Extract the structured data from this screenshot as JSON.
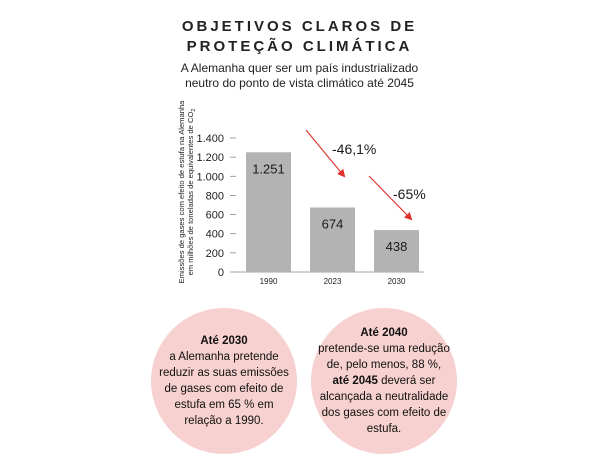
{
  "header": {
    "title_line1": "OBJETIVOS CLAROS DE",
    "title_line2": "PROTEÇÃO CLIMÁTICA",
    "subtitle_line1": "A Alemanha quer ser um país industrializado",
    "subtitle_line2": "neutro do ponto de vista climático até 2045"
  },
  "chart_data": {
    "type": "bar",
    "categories": [
      "1990",
      "2023",
      "2030"
    ],
    "values": [
      1251,
      674,
      438
    ],
    "value_labels": [
      "1.251",
      "674",
      "438"
    ],
    "ylim": [
      0,
      1400
    ],
    "yticks": [
      0,
      200,
      400,
      600,
      800,
      1000,
      1200,
      1400
    ],
    "ytick_labels": [
      "0",
      "200",
      "400",
      "600",
      "800",
      "1.000",
      "1.200",
      "1.400"
    ],
    "ylabel_line1": "Emissões de gases com efeito de estufa na Alemanha",
    "ylabel_line2": "em milhões de toneladas de equivalentes de CO",
    "ylabel_subscript": "2",
    "grid": false,
    "annotations": [
      "-46,1%",
      "-65%"
    ],
    "colors": {
      "bar": "#b3b3b3",
      "arrow": "#e0312b",
      "axis": "#888888"
    }
  },
  "info": {
    "circle1": {
      "bold_lead": "Até 2030",
      "text": "a Alemanha pretende reduzir as suas emissões de gases com efeito de estufa em 65 % em relação a 1990."
    },
    "circle2": {
      "bold_lead": "Até 2040",
      "text_a": "pretende-se uma redução de, pelo menos, 88 %,",
      "bold_mid": "até 2045",
      "text_b": "deverá ser alcançada a neutralidade dos gases com efeito de estufa."
    },
    "circle_color": "#f6d1cf"
  }
}
